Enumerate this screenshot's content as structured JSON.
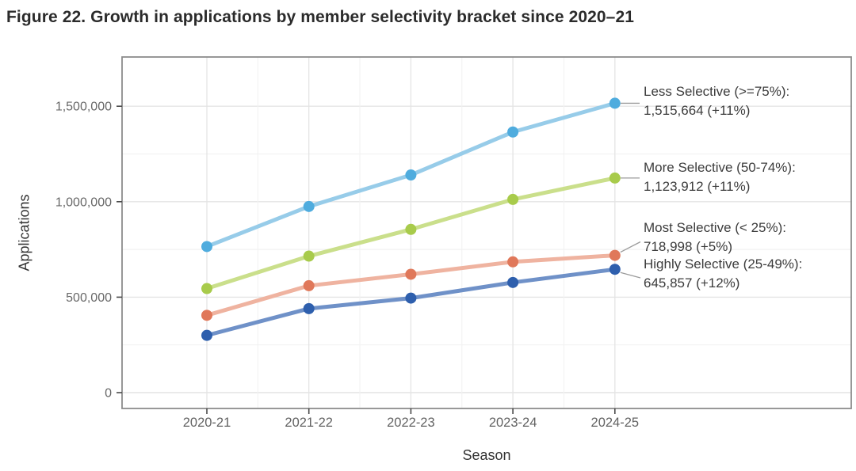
{
  "figure_title": "Figure 22. Growth in applications by member selectivity bracket since 2020–21",
  "chart_data": {
    "type": "line",
    "title": "Figure 22. Growth in applications by member selectivity bracket since 2020–21",
    "xlabel": "Season",
    "ylabel": "Applications",
    "categories": [
      "2020-21",
      "2021-22",
      "2022-23",
      "2023-24",
      "2024-25"
    ],
    "y_ticks": [
      {
        "value": 0,
        "label": "0"
      },
      {
        "value": 500000,
        "label": "500,000"
      },
      {
        "value": 1000000,
        "label": "1,000,000"
      },
      {
        "value": 1500000,
        "label": "1,500,000"
      }
    ],
    "ylim": [
      0,
      1760000
    ],
    "grid": {
      "horizontal_major_step": 500000,
      "horizontal_minor_step": 250000,
      "vertical_major": "at each season category",
      "color_major": "#e4e4e4",
      "color_minor": "#f2f2f2"
    },
    "legend_position": "right-side annotations next to last data points",
    "series": [
      {
        "id": "less-selective",
        "name": "Less Selective (>=75%)",
        "marker_color": "#4FACDE",
        "line_color": "#97CCE9",
        "values": [
          765000,
          975000,
          1140000,
          1365000,
          1515664
        ],
        "annotation_lines": [
          "Less Selective (>=75%):",
          "1,515,664 (+11%)"
        ],
        "final_value_label": "1,515,664",
        "yoy_change_label": "+11%"
      },
      {
        "id": "more-selective",
        "name": "More Selective (50-74%)",
        "marker_color": "#A8CB4B",
        "line_color": "#CADF8B",
        "values": [
          545000,
          715000,
          855000,
          1012000,
          1123912
        ],
        "annotation_lines": [
          "More Selective (50-74%):",
          "1,123,912 (+11%)"
        ],
        "final_value_label": "1,123,912",
        "yoy_change_label": "+11%"
      },
      {
        "id": "most-selective",
        "name": "Most Selective (< 25%)",
        "marker_color": "#E0785A",
        "line_color": "#EFB3A0",
        "values": [
          405000,
          560000,
          620000,
          685000,
          718998
        ],
        "annotation_lines": [
          "Most Selective (< 25%):",
          "718,998 (+5%)"
        ],
        "final_value_label": "718,998",
        "yoy_change_label": "+5%"
      },
      {
        "id": "highly-selective",
        "name": "Highly Selective (25-49%)",
        "marker_color": "#2E5FAD",
        "line_color": "#6F91C8",
        "values": [
          300000,
          440000,
          495000,
          577000,
          645857
        ],
        "annotation_lines": [
          "Highly Selective (25-49%):",
          "645,857 (+12%)"
        ],
        "final_value_label": "645,857",
        "yoy_change_label": "+12%"
      }
    ]
  }
}
